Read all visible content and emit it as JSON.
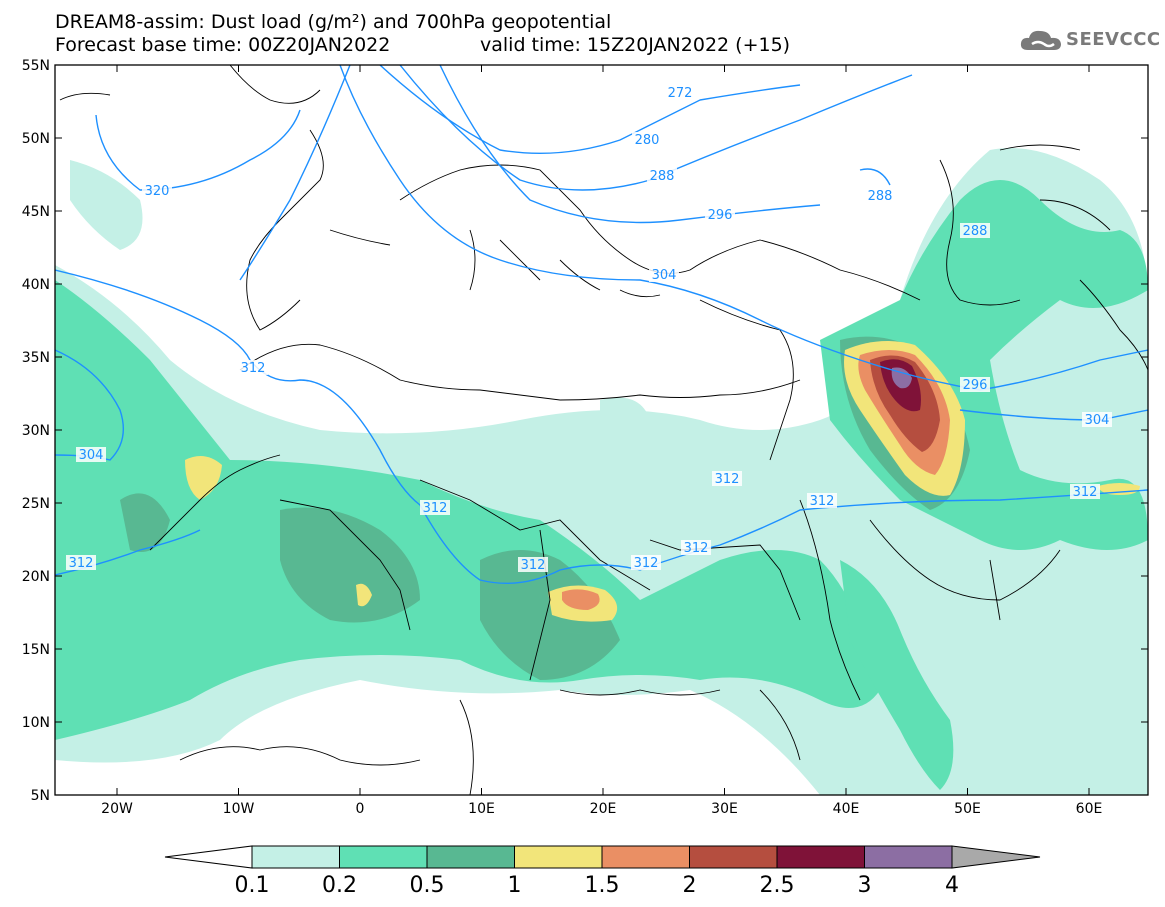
{
  "header": {
    "title_line1": "DREAM8-assim: Dust load (g/m²) and 700hPa geopotential",
    "title_line2": "Forecast base time: 00Z20JAN2022",
    "valid_time": "valid time: 15Z20JAN2022 (+15)"
  },
  "logo": {
    "text": "SEEVCCC",
    "icon": "cloud-icon"
  },
  "axes": {
    "lat_labels": [
      "55N",
      "50N",
      "45N",
      "40N",
      "35N",
      "30N",
      "25N",
      "20N",
      "15N",
      "10N",
      "5N"
    ],
    "lon_labels": [
      "20W",
      "10W",
      "0",
      "10E",
      "20E",
      "30E",
      "40E",
      "50E",
      "60E"
    ]
  },
  "contour_labels": [
    "272",
    "280",
    "288",
    "288",
    "288",
    "296",
    "296",
    "304",
    "304",
    "304",
    "312",
    "312",
    "312",
    "312",
    "312",
    "312",
    "312",
    "312",
    "312",
    "320"
  ],
  "colorbar": {
    "labels": [
      "0.1",
      "0.2",
      "0.5",
      "1",
      "1.5",
      "2",
      "2.5",
      "3",
      "4"
    ],
    "colors": [
      "#c4f0e6",
      "#5fe0b4",
      "#58b892",
      "#f2e57a",
      "#ea8f64",
      "#b54e3f",
      "#7f1238",
      "#8c6ea3"
    ]
  },
  "colors": {
    "contour": "#1e90ff",
    "border": "#000000",
    "dust_very_light": "#c4f0e6",
    "dust_light": "#5fe0b4",
    "dust_medium": "#58b892",
    "dust_yellow": "#f2e57a",
    "dust_orange": "#ea8f64",
    "dust_red": "#b54e3f",
    "dust_darkred": "#7f1238",
    "dust_purple": "#8c6ea3"
  }
}
